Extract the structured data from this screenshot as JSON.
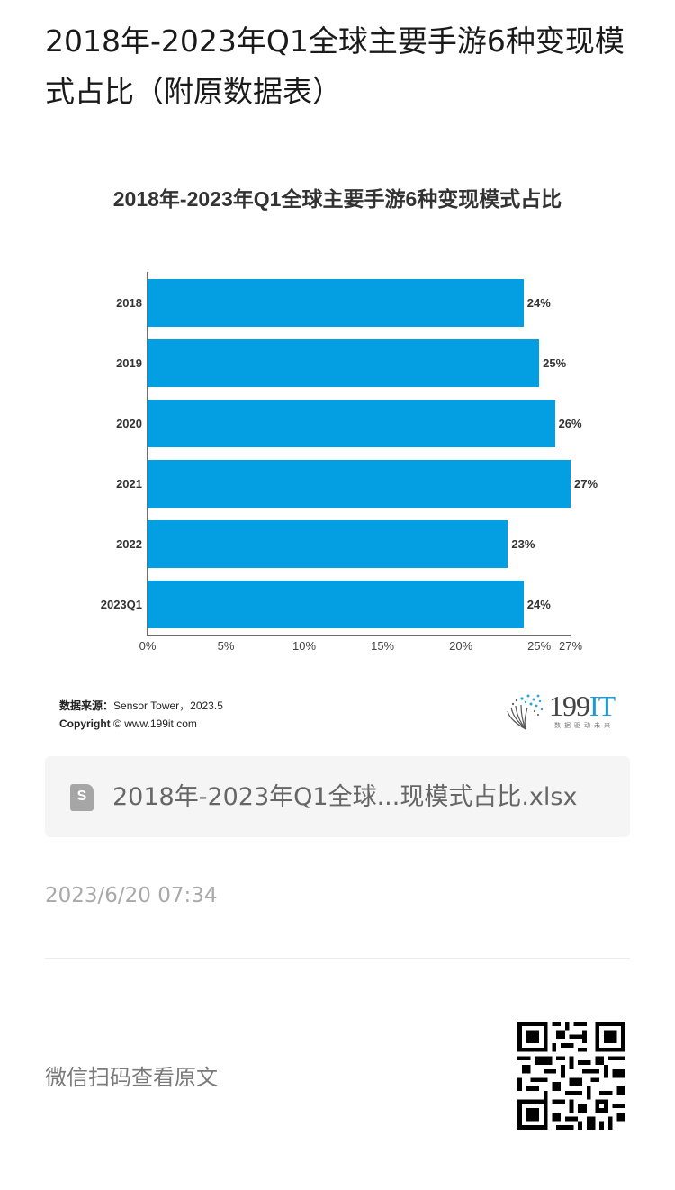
{
  "page": {
    "title": "2018年-2023年Q1全球主要手游6种变现模式占比（附原数据表）"
  },
  "chart": {
    "title": "2018年-2023年Q1全球主要手游6种变现模式占比",
    "bar_color": "#049ee3",
    "source_label": "数据来源：",
    "source_value": "Sensor Tower，2023.5",
    "copyright_label": "Copyright",
    "copyright_value": "© www.199it.com",
    "logo_main": "199",
    "logo_accent": "IT",
    "logo_tagline": "数据驱动未来"
  },
  "chart_data": {
    "type": "bar",
    "orientation": "horizontal",
    "title": "2018年-2023年Q1全球主要手游6种变现模式占比",
    "categories": [
      "2018",
      "2019",
      "2020",
      "2021",
      "2022",
      "2023Q1"
    ],
    "values": [
      24,
      25,
      26,
      27,
      23,
      24
    ],
    "value_labels": [
      "24%",
      "25%",
      "26%",
      "27%",
      "23%",
      "24%"
    ],
    "xlabel": "",
    "ylabel": "",
    "xlim": [
      0,
      27
    ],
    "x_ticks": [
      "0%",
      "5%",
      "10%",
      "15%",
      "20%",
      "25%",
      "27%"
    ],
    "x_tick_values": [
      0,
      5,
      10,
      15,
      20,
      25,
      27
    ],
    "grid": false,
    "legend": null
  },
  "attachment": {
    "icon": "spreadsheet-file-icon",
    "icon_letter": "S",
    "filename": "2018年-2023年Q1全球...现模式占比.xlsx"
  },
  "meta": {
    "timestamp": "2023/6/20 07:34"
  },
  "footer": {
    "scan_text": "微信扫码查看原文",
    "qr_icon": "qr-code"
  }
}
